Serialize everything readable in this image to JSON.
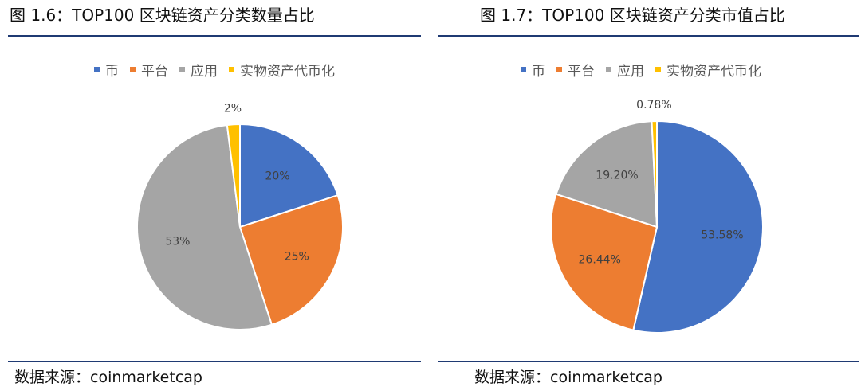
{
  "chart_data": [
    {
      "type": "pie",
      "title": "图 1.6：TOP100 区块链资产分类数量占比",
      "categories": [
        "币",
        "平台",
        "应用",
        "实物资产代币化"
      ],
      "values": [
        20,
        25,
        53,
        2
      ],
      "labels": [
        "20%",
        "25%",
        "53%",
        "2%"
      ],
      "colors": [
        "#4472c4",
        "#ed7d31",
        "#a5a5a5",
        "#ffc000"
      ],
      "legend_position": "top",
      "source": "数据来源：coinmarketcap"
    },
    {
      "type": "pie",
      "title": "图 1.7：TOP100 区块链资产分类市值占比",
      "categories": [
        "币",
        "平台",
        "应用",
        "实物资产代币化"
      ],
      "values": [
        53.58,
        26.44,
        19.2,
        0.78
      ],
      "labels": [
        "53.58%",
        "26.44%",
        "19.20%",
        "0.78%"
      ],
      "colors": [
        "#4472c4",
        "#ed7d31",
        "#a5a5a5",
        "#ffc000"
      ],
      "legend_position": "top",
      "source": "数据来源：coinmarketcap"
    }
  ]
}
